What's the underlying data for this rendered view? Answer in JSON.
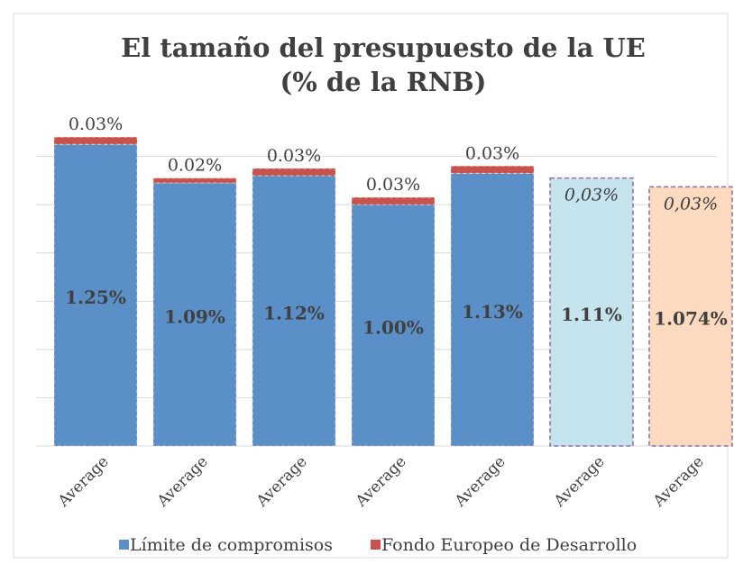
{
  "chart_data": {
    "type": "stacked_bar",
    "title": "El tamaño del presupuesto de la UE (% de la RNB)",
    "categories": [
      "Average",
      "Average",
      "Average",
      "Average",
      "Average",
      "Average",
      "Average"
    ],
    "series": [
      {
        "name": "Límite de compromisos",
        "color": "#5b8fc7",
        "point_colors": [
          "#5b8fc7",
          "#5b8fc7",
          "#5b8fc7",
          "#5b8fc7",
          "#5b8fc7",
          "#c6e4ee",
          "#fcdabf"
        ],
        "values": [
          1.25,
          1.09,
          1.12,
          1.0,
          1.13,
          1.11,
          1.074
        ],
        "value_labels": [
          "1.25%",
          "1.09%",
          "1.12%",
          "1.00%",
          "1.13%",
          "1.11%",
          "1.074%"
        ]
      },
      {
        "name": "Fondo Europeo de Desarrollo",
        "color": "#c9524f",
        "values": [
          0.03,
          0.02,
          0.03,
          0.03,
          0.03,
          null,
          null
        ],
        "value_labels": [
          "0.03%",
          "0.02%",
          "0.03%",
          "0.03%",
          "0.03%",
          null,
          null
        ]
      }
    ],
    "annotations": [
      null,
      null,
      null,
      null,
      null,
      "0,03%",
      "0,03%"
    ],
    "ylim": [
      0,
      1.4
    ],
    "yticks": [
      0,
      0.2,
      0.4,
      0.6,
      0.8,
      1.0,
      1.2
    ],
    "grid": true,
    "legend": "bottom"
  }
}
